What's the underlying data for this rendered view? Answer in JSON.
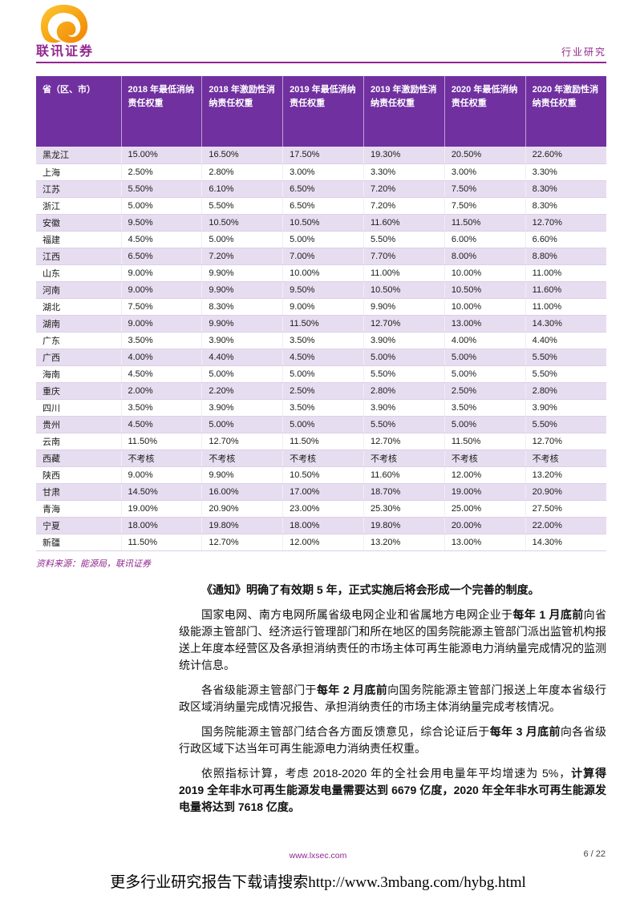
{
  "colors": {
    "accent": "#92278F",
    "table_header_bg": "#7030A0",
    "row_alt_bg": "#E7DDF0",
    "grid_line": "#DCCFE8",
    "logo_yellow": "#FDC832",
    "logo_orange": "#F08300"
  },
  "brand": {
    "logo_text": "联讯证券",
    "report_type": "行业研究"
  },
  "table": {
    "columns": [
      "省（区、市）",
      "2018 年最低消纳责任权重",
      "2018 年激励性消纳责任权重",
      "2019 年最低消纳责任权重",
      "2019 年激励性消纳责任权重",
      "2020 年最低消纳责任权重",
      "2020 年激励性消纳责任权重"
    ],
    "rows": [
      [
        "黑龙江",
        "15.00%",
        "16.50%",
        "17.50%",
        "19.30%",
        "20.50%",
        "22.60%"
      ],
      [
        "上海",
        "2.50%",
        "2.80%",
        "3.00%",
        "3.30%",
        "3.00%",
        "3.30%"
      ],
      [
        "江苏",
        "5.50%",
        "6.10%",
        "6.50%",
        "7.20%",
        "7.50%",
        "8.30%"
      ],
      [
        "浙江",
        "5.00%",
        "5.50%",
        "6.50%",
        "7.20%",
        "7.50%",
        "8.30%"
      ],
      [
        "安徽",
        "9.50%",
        "10.50%",
        "10.50%",
        "11.60%",
        "11.50%",
        "12.70%"
      ],
      [
        "福建",
        "4.50%",
        "5.00%",
        "5.00%",
        "5.50%",
        "6.00%",
        "6.60%"
      ],
      [
        "江西",
        "6.50%",
        "7.20%",
        "7.00%",
        "7.70%",
        "8.00%",
        "8.80%"
      ],
      [
        "山东",
        "9.00%",
        "9.90%",
        "10.00%",
        "11.00%",
        "10.00%",
        "11.00%"
      ],
      [
        "河南",
        "9.00%",
        "9.90%",
        "9.50%",
        "10.50%",
        "10.50%",
        "11.60%"
      ],
      [
        "湖北",
        "7.50%",
        "8.30%",
        "9.00%",
        "9.90%",
        "10.00%",
        "11.00%"
      ],
      [
        "湖南",
        "9.00%",
        "9.90%",
        "11.50%",
        "12.70%",
        "13.00%",
        "14.30%"
      ],
      [
        "广东",
        "3.50%",
        "3.90%",
        "3.50%",
        "3.90%",
        "4.00%",
        "4.40%"
      ],
      [
        "广西",
        "4.00%",
        "4.40%",
        "4.50%",
        "5.00%",
        "5.00%",
        "5.50%"
      ],
      [
        "海南",
        "4.50%",
        "5.00%",
        "5.00%",
        "5.50%",
        "5.00%",
        "5.50%"
      ],
      [
        "重庆",
        "2.00%",
        "2.20%",
        "2.50%",
        "2.80%",
        "2.50%",
        "2.80%"
      ],
      [
        "四川",
        "3.50%",
        "3.90%",
        "3.50%",
        "3.90%",
        "3.50%",
        "3.90%"
      ],
      [
        "贵州",
        "4.50%",
        "5.00%",
        "5.00%",
        "5.50%",
        "5.00%",
        "5.50%"
      ],
      [
        "云南",
        "11.50%",
        "12.70%",
        "11.50%",
        "12.70%",
        "11.50%",
        "12.70%"
      ],
      [
        "西藏",
        "不考核",
        "不考核",
        "不考核",
        "不考核",
        "不考核",
        "不考核"
      ],
      [
        "陕西",
        "9.00%",
        "9.90%",
        "10.50%",
        "11.60%",
        "12.00%",
        "13.20%"
      ],
      [
        "甘肃",
        "14.50%",
        "16.00%",
        "17.00%",
        "18.70%",
        "19.00%",
        "20.90%"
      ],
      [
        "青海",
        "19.00%",
        "20.90%",
        "23.00%",
        "25.30%",
        "25.00%",
        "27.50%"
      ],
      [
        "宁夏",
        "18.00%",
        "19.80%",
        "18.00%",
        "19.80%",
        "20.00%",
        "22.00%"
      ],
      [
        "新疆",
        "11.50%",
        "12.70%",
        "12.00%",
        "13.20%",
        "13.00%",
        "14.30%"
      ]
    ],
    "source": "资料来源：能源局，联讯证券"
  },
  "paragraphs": [
    {
      "segments": [
        {
          "text": "《通知》明确了有效期 5 年，正式实施后将会形成一个完善的制度。",
          "bold": true
        }
      ]
    },
    {
      "segments": [
        {
          "text": "国家电网、南方电网所属省级电网企业和省属地方电网企业于",
          "bold": false
        },
        {
          "text": "每年 1 月底前",
          "bold": true
        },
        {
          "text": "向省级能源主管部门、经济运行管理部门和所在地区的国务院能源主管部门派出监管机构报送上年度本经营区及各承担消纳责任的市场主体可再生能源电力消纳量完成情况的监测统计信息。",
          "bold": false
        }
      ]
    },
    {
      "segments": [
        {
          "text": "各省级能源主管部门于",
          "bold": false
        },
        {
          "text": "每年 2 月底前",
          "bold": true
        },
        {
          "text": "向国务院能源主管部门报送上年度本省级行政区域消纳量完成情况报告、承担消纳责任的市场主体消纳量完成考核情况。",
          "bold": false
        }
      ]
    },
    {
      "segments": [
        {
          "text": "国务院能源主管部门结合各方面反馈意见，综合论证后于",
          "bold": false
        },
        {
          "text": "每年 3 月底前",
          "bold": true
        },
        {
          "text": "向各省级行政区域下达当年可再生能源电力消纳责任权重。",
          "bold": false
        }
      ]
    },
    {
      "segments": [
        {
          "text": "依照指标计算，考虑 2018-2020 年的全社会用电量年平均增速为 5%，",
          "bold": false
        },
        {
          "text": "计算得 2019 全年非水可再生能源发电量需要达到 6679 亿度，2020 年全年非水可再生能源发电量将达到 7618 亿度。",
          "bold": true
        }
      ]
    }
  ],
  "footer": {
    "site": "www.lxsec.com",
    "page": "6 / 22",
    "notice": "更多行业研究报告下载请搜索http://www.3mbang.com/hybg.html"
  }
}
